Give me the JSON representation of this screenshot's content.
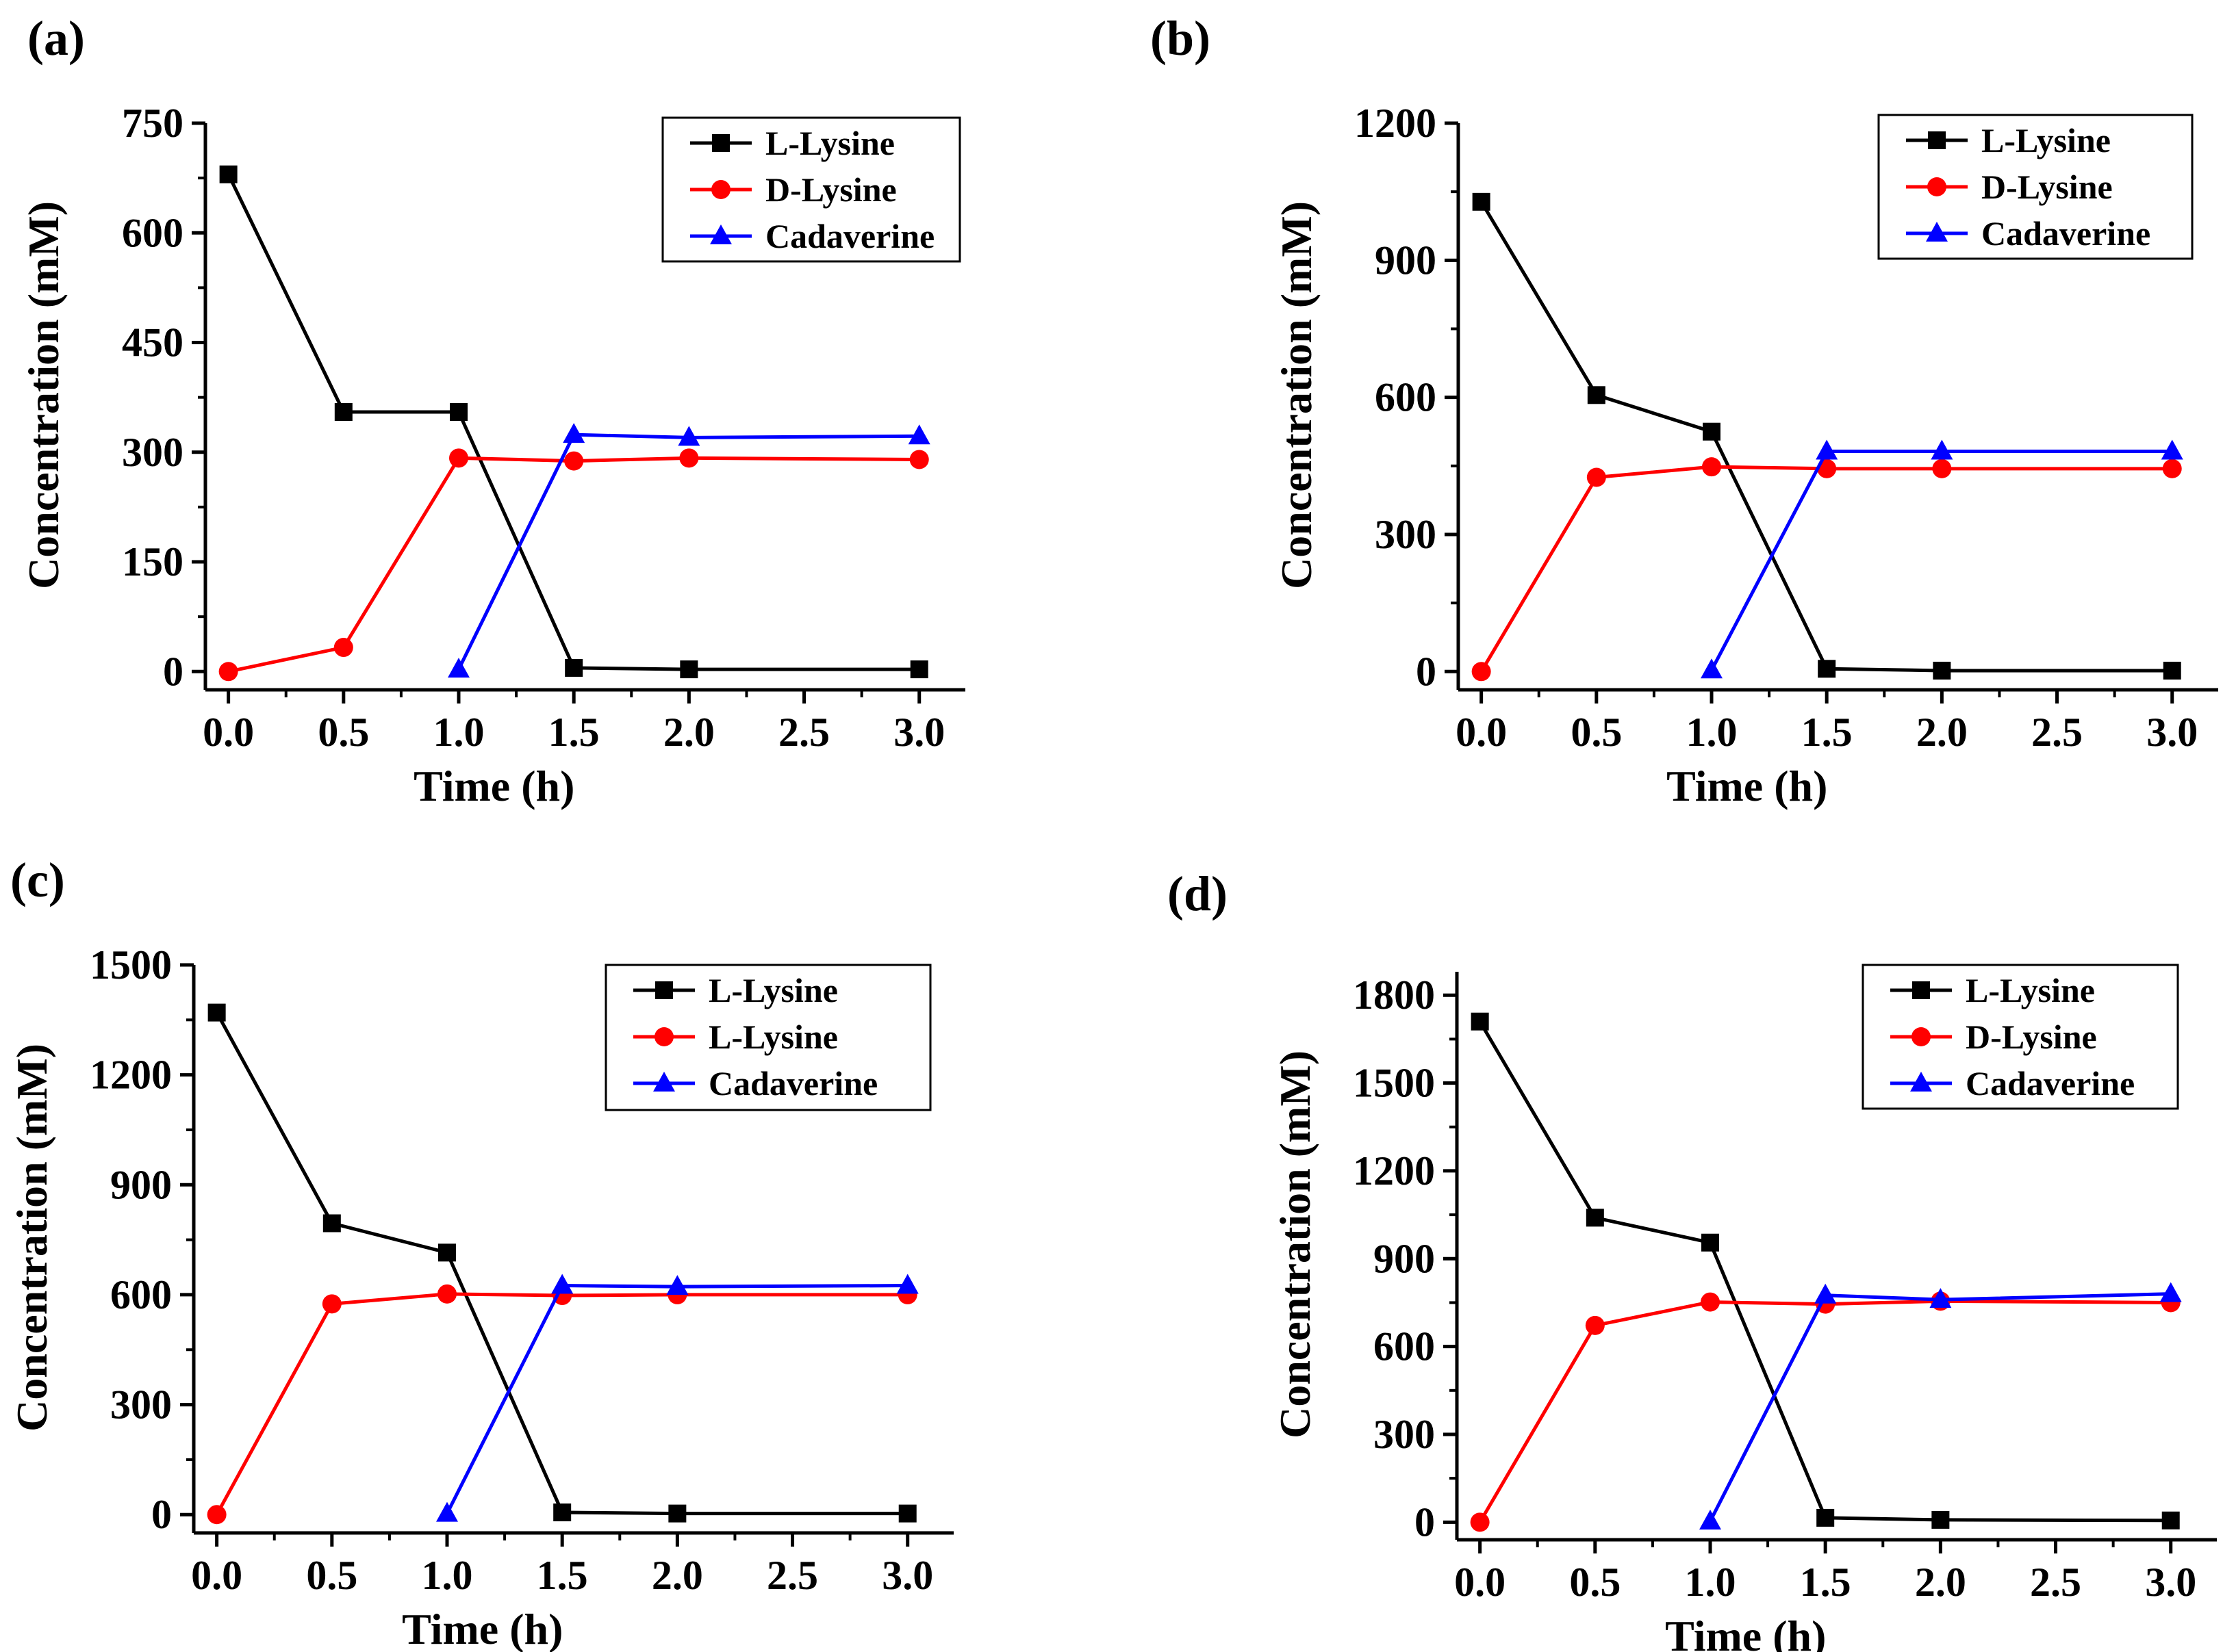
{
  "chart_data": [
    {
      "panel": "(a)",
      "type": "line",
      "title": "",
      "xlabel": "Time (h)",
      "ylabel": "Concentration (mM)",
      "xlim": [
        -0.1,
        3.2
      ],
      "ylim": [
        -25,
        750
      ],
      "xticks": [
        0.0,
        0.5,
        1.0,
        1.5,
        2.0,
        2.5,
        3.0
      ],
      "yticks": [
        0,
        150,
        300,
        450,
        600,
        750
      ],
      "xtick_labels": [
        "0.0",
        "0.5",
        "1.0",
        "1.5",
        "2.0",
        "2.5",
        "3.0"
      ],
      "ytick_labels": [
        "0",
        "150",
        "300",
        "450",
        "600",
        "750"
      ],
      "legend_position": "top-right",
      "series": [
        {
          "name": "L-Lysine",
          "color": "#000000",
          "marker": "square",
          "x": [
            0,
            0.5,
            1.0,
            1.5,
            2.0,
            3.0
          ],
          "y": [
            680,
            355,
            355,
            5,
            3,
            3
          ]
        },
        {
          "name": "D-Lysine",
          "color": "#ff0000",
          "marker": "circle",
          "x": [
            0,
            0.5,
            1.0,
            1.5,
            2.0,
            3.0
          ],
          "y": [
            0,
            33,
            292,
            288,
            292,
            290
          ]
        },
        {
          "name": "Cadaverine",
          "color": "#0000ff",
          "marker": "triangle",
          "x": [
            1.0,
            1.5,
            2.0,
            3.0
          ],
          "y": [
            3,
            324,
            320,
            322
          ]
        }
      ]
    },
    {
      "panel": "(b)",
      "type": "line",
      "title": "",
      "xlabel": "Time (h)",
      "ylabel": "Concentration (mM)",
      "xlim": [
        -0.1,
        3.2
      ],
      "ylim": [
        -40,
        1200
      ],
      "xticks": [
        0.0,
        0.5,
        1.0,
        1.5,
        2.0,
        2.5,
        3.0
      ],
      "yticks": [
        0,
        300,
        600,
        900,
        1200
      ],
      "xtick_labels": [
        "0.0",
        "0.5",
        "1.0",
        "1.5",
        "2.0",
        "2.5",
        "3.0"
      ],
      "ytick_labels": [
        "0",
        "300",
        "600",
        "900",
        "1200"
      ],
      "legend_position": "top-right",
      "series": [
        {
          "name": "L-Lysine",
          "color": "#000000",
          "marker": "square",
          "x": [
            0,
            0.5,
            1.0,
            1.5,
            2.0,
            3.0
          ],
          "y": [
            1028,
            605,
            525,
            6,
            2,
            2
          ]
        },
        {
          "name": "D-Lysine",
          "color": "#ff0000",
          "marker": "circle",
          "x": [
            0,
            0.5,
            1.0,
            1.5,
            2.0,
            3.0
          ],
          "y": [
            0,
            425,
            448,
            444,
            444,
            444
          ]
        },
        {
          "name": "Cadaverine",
          "color": "#0000ff",
          "marker": "triangle",
          "x": [
            1.0,
            1.5,
            2.0,
            3.0
          ],
          "y": [
            3,
            482,
            482,
            482
          ]
        }
      ]
    },
    {
      "panel": "(c)",
      "type": "line",
      "title": "",
      "xlabel": "Time (h)",
      "ylabel": "Concentration (mM)",
      "xlim": [
        -0.1,
        3.2
      ],
      "ylim": [
        -50,
        1500
      ],
      "xticks": [
        0.0,
        0.5,
        1.0,
        1.5,
        2.0,
        2.5,
        3.0
      ],
      "yticks": [
        0,
        300,
        600,
        900,
        1200,
        1500
      ],
      "xtick_labels": [
        "0.0",
        "0.5",
        "1.0",
        "1.5",
        "2.0",
        "2.5",
        "3.0"
      ],
      "ytick_labels": [
        "0",
        "300",
        "600",
        "900",
        "1200",
        "1500"
      ],
      "legend_position": "top-right",
      "series": [
        {
          "name": "L-Lysine",
          "color": "#000000",
          "marker": "square",
          "x": [
            0,
            0.5,
            1.0,
            1.5,
            2.0,
            3.0
          ],
          "y": [
            1370,
            795,
            715,
            6,
            3,
            3
          ]
        },
        {
          "name": "L-Lysine",
          "color": "#ff0000",
          "marker": "circle",
          "x": [
            0,
            0.5,
            1.0,
            1.5,
            2.0,
            3.0
          ],
          "y": [
            0,
            575,
            602,
            598,
            600,
            600
          ]
        },
        {
          "name": "Cadaverine",
          "color": "#0000ff",
          "marker": "triangle",
          "x": [
            1.0,
            1.5,
            2.0,
            3.0
          ],
          "y": [
            3,
            625,
            622,
            625
          ]
        }
      ]
    },
    {
      "panel": "(d)",
      "type": "line",
      "title": "",
      "xlabel": "Time (h)",
      "ylabel": "Concentration (mM)",
      "xlim": [
        -0.1,
        3.2
      ],
      "ylim": [
        -60,
        1880
      ],
      "xticks": [
        0.0,
        0.5,
        1.0,
        1.5,
        2.0,
        2.5,
        3.0
      ],
      "yticks": [
        0,
        300,
        600,
        900,
        1200,
        1500,
        1800
      ],
      "xtick_labels": [
        "0.0",
        "0.5",
        "1.0",
        "1.5",
        "2.0",
        "2.5",
        "3.0"
      ],
      "ytick_labels": [
        "0",
        "300",
        "600",
        "900",
        "1200",
        "1500",
        "1800"
      ],
      "legend_position": "top-right",
      "series": [
        {
          "name": "L-Lysine",
          "color": "#000000",
          "marker": "square",
          "x": [
            0,
            0.5,
            1.0,
            1.5,
            2.0,
            3.0
          ],
          "y": [
            1710,
            1040,
            955,
            15,
            8,
            6
          ]
        },
        {
          "name": "D-Lysine",
          "color": "#ff0000",
          "marker": "circle",
          "x": [
            0,
            0.5,
            1.0,
            1.5,
            2.0,
            3.0
          ],
          "y": [
            0,
            672,
            752,
            745,
            755,
            750
          ]
        },
        {
          "name": "Cadaverine",
          "color": "#0000ff",
          "marker": "triangle",
          "x": [
            1.0,
            1.5,
            2.0,
            3.0
          ],
          "y": [
            3,
            775,
            760,
            780
          ]
        }
      ]
    }
  ]
}
